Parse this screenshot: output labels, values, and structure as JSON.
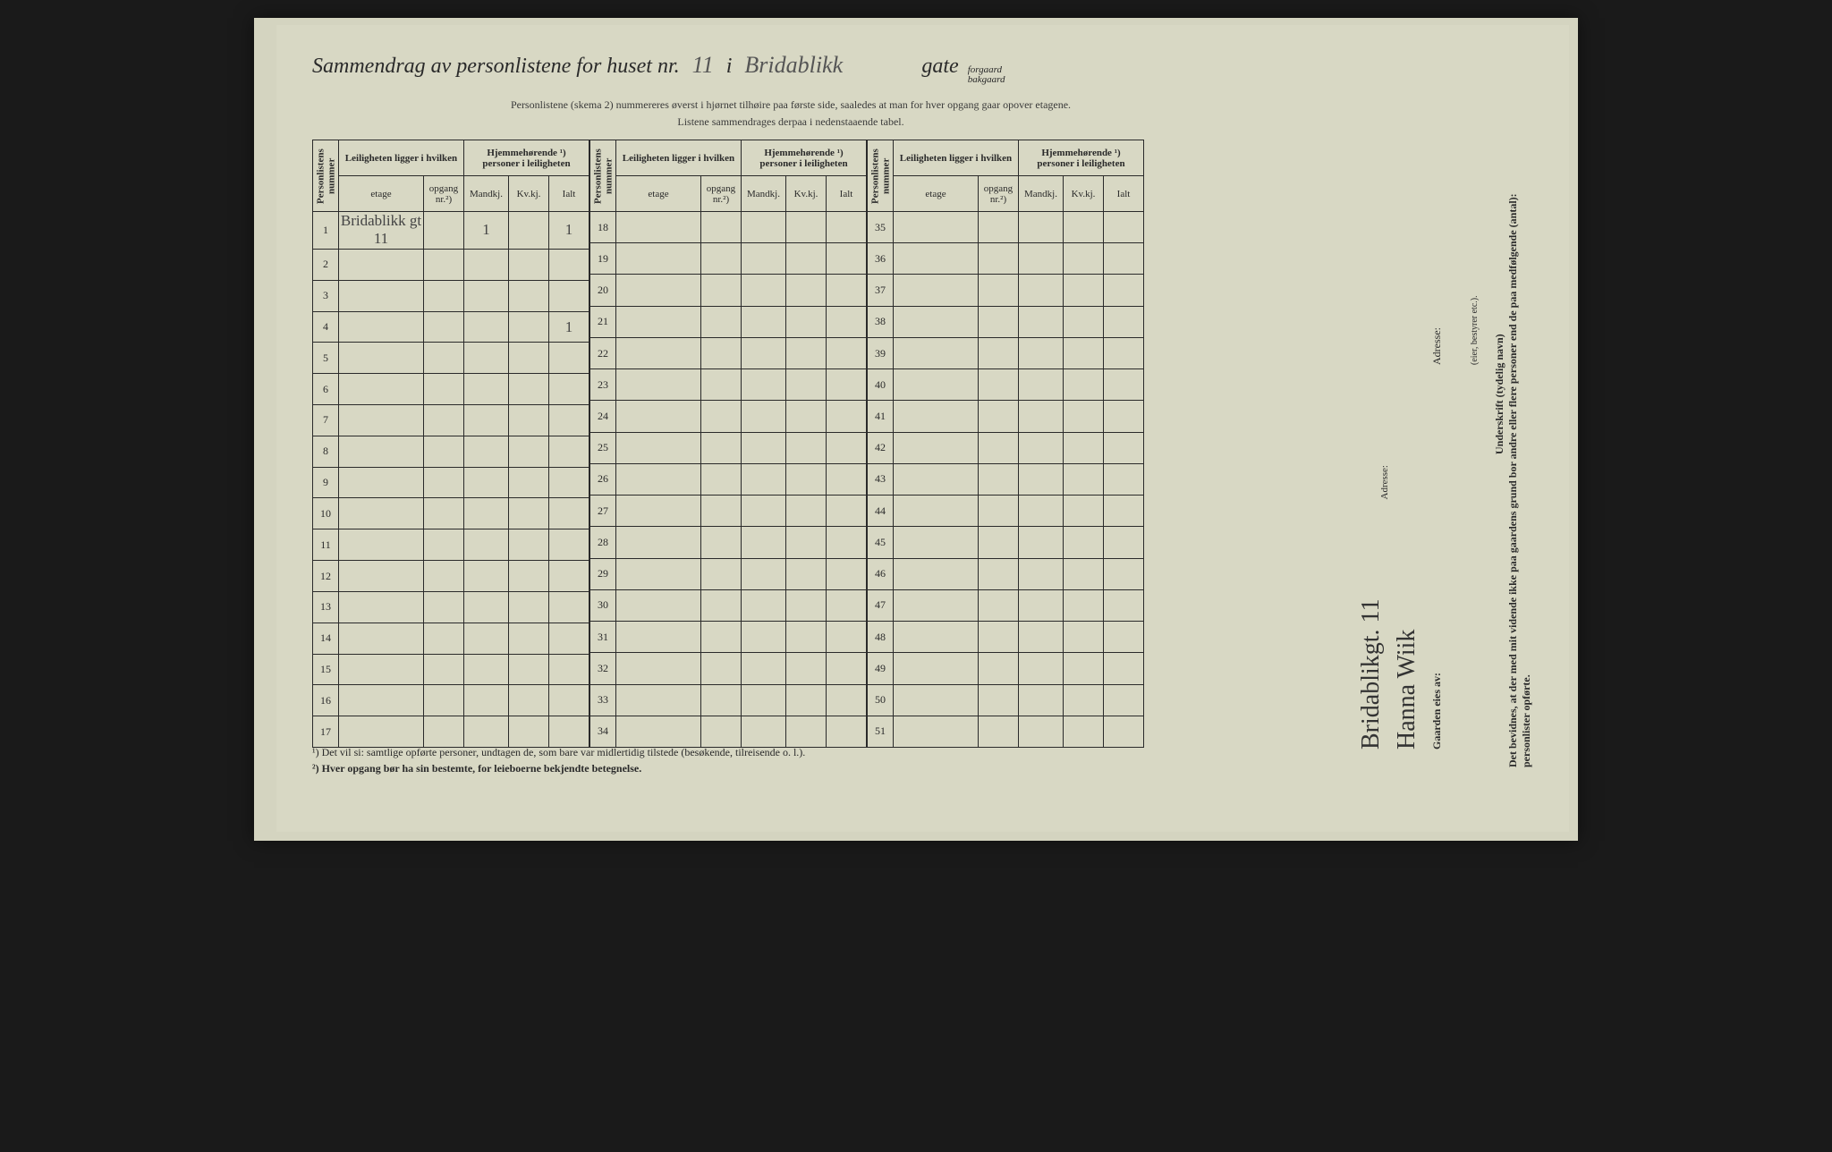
{
  "title": {
    "prefix": "Sammendrag av personlistene for huset nr.",
    "house_nr": "11",
    "i": "i",
    "street": "Bridablikk",
    "gate": "gate",
    "forgaard": "forgaard",
    "bakgaard": "bakgaard"
  },
  "subtitle1": "Personlistene (skema 2) nummereres øverst i hjørnet tilhøire paa første side, saaledes at man for hver opgang gaar opover etagene.",
  "subtitle2": "Listene sammendrages derpaa i nedenstaaende tabel.",
  "headers": {
    "personlistens": "Personlistens nummer",
    "leiligheten": "Leiligheten ligger i hvilken",
    "hjemme": "Hjemmehørende ¹) personer i leiligheten",
    "etage": "etage",
    "opgang": "opgang nr.²)",
    "mandkj": "Mandkj.",
    "kvkj": "Kv.kj.",
    "ialt": "Ialt"
  },
  "blocks": [
    {
      "start": 1,
      "end": 17
    },
    {
      "start": 18,
      "end": 34
    },
    {
      "start": 35,
      "end": 51
    }
  ],
  "row1": {
    "etage": "Bridablikk gt 11",
    "mandkj": "1",
    "ialt": "1"
  },
  "row4": {
    "ialt": "1"
  },
  "footnotes": {
    "f1": "¹)  Det vil si: samtlige opførte personer, undtagen de, som bare var midlertidig tilstede (besøkende, tilreisende o. l.).",
    "f2": "²)  Hver opgang bør ha sin bestemte, for leieboerne bekjendte betegnelse."
  },
  "sidebar": {
    "bevidnes": "Det bevidnes, at der med mit vidende ikke paa gaardens grund bor andre eller flere personer end de paa medfølgende (antal):",
    "personlister": "personlister opførte.",
    "underskrift": "Underskrift (tydelig navn)",
    "eier": "(eier, bestyrer etc.).",
    "adresse": "Adresse:",
    "gaarden": "Gaarden eies av:",
    "signature": "Hanna Wiik",
    "sig_address": "Bridablikgt. 11"
  },
  "colors": {
    "page_bg": "#d4d4c0",
    "text": "#2a2a2a",
    "border": "#2a2a2a",
    "handwriting": "#444"
  }
}
